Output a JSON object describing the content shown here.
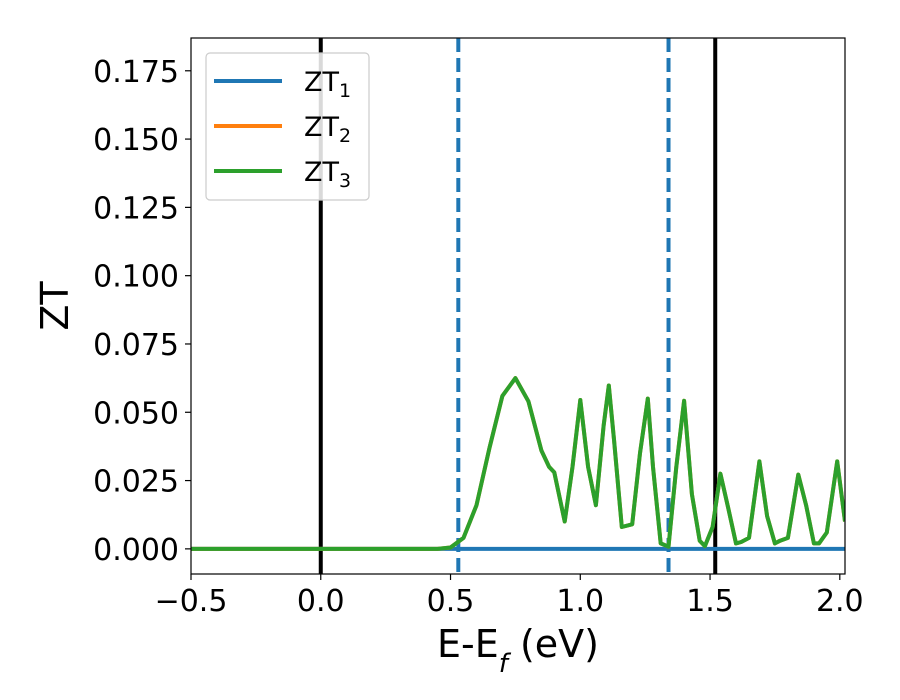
{
  "chart_data": {
    "type": "line",
    "title": "",
    "xlabel": "E-E_f (eV)",
    "ylabel": "ZT",
    "xlim": [
      -0.5,
      2.02
    ],
    "ylim": [
      -0.0092,
      0.187
    ],
    "xticks": [
      -0.5,
      0.0,
      0.5,
      1.0,
      1.5,
      2.0
    ],
    "xtick_labels": [
      "−0.5",
      "0.0",
      "0.5",
      "1.0",
      "1.5",
      "2.0"
    ],
    "yticks": [
      0.0,
      0.025,
      0.05,
      0.075,
      0.1,
      0.125,
      0.15,
      0.175
    ],
    "ytick_labels": [
      "0.000",
      "0.025",
      "0.050",
      "0.075",
      "0.100",
      "0.125",
      "0.150",
      "0.175"
    ],
    "grid": false,
    "legend_position": "top-left",
    "legend_entries": [
      {
        "name": "ZT",
        "sub": "1",
        "color": "#1f77b4"
      },
      {
        "name": "ZT",
        "sub": "2",
        "color": "#ff7f0e"
      },
      {
        "name": "ZT",
        "sub": "3",
        "color": "#2ca02c"
      }
    ],
    "vlines": [
      {
        "x": 0.0,
        "style": "solid",
        "color": "#000000"
      },
      {
        "x": 1.52,
        "style": "solid",
        "color": "#000000"
      },
      {
        "x": 0.53,
        "style": "dashed",
        "color": "#1f77b4"
      },
      {
        "x": 1.34,
        "style": "dashed",
        "color": "#1f77b4"
      }
    ],
    "series": [
      {
        "name": "ZT₁",
        "color": "#1f77b4",
        "x": [
          -0.5,
          2.02
        ],
        "y": [
          0.0,
          0.0
        ]
      },
      {
        "name": "ZT₂",
        "color": "#ff7f0e",
        "x": [
          -0.5,
          0.45,
          0.5,
          0.55,
          0.6,
          0.65,
          0.7,
          0.75,
          0.8,
          0.85,
          0.88,
          0.9,
          0.94,
          0.97,
          1.0,
          1.03,
          1.06,
          1.09,
          1.11,
          1.13,
          1.16,
          1.2,
          1.23,
          1.26,
          1.28,
          1.31,
          1.34,
          1.37,
          1.4,
          1.43,
          1.46,
          1.48,
          1.51,
          1.54,
          1.57,
          1.6,
          1.62,
          1.65,
          1.69,
          1.72,
          1.75,
          1.77,
          1.8,
          1.84,
          1.87,
          1.9,
          1.92,
          1.95,
          1.99,
          2.02
        ],
        "y": [
          0.0,
          0.0,
          0.0005,
          0.004,
          0.016,
          0.037,
          0.056,
          0.0625,
          0.054,
          0.036,
          0.03,
          0.028,
          0.01,
          0.03,
          0.0545,
          0.03,
          0.016,
          0.045,
          0.0598,
          0.04,
          0.008,
          0.009,
          0.035,
          0.055,
          0.03,
          0.002,
          0.0008,
          0.03,
          0.0542,
          0.02,
          0.003,
          0.001,
          0.008,
          0.0275,
          0.015,
          0.002,
          0.0025,
          0.004,
          0.032,
          0.012,
          0.002,
          0.003,
          0.004,
          0.0272,
          0.016,
          0.002,
          0.002,
          0.006,
          0.032,
          0.01
        ]
      },
      {
        "name": "ZT₃",
        "color": "#2ca02c",
        "x": [
          -0.5,
          0.45,
          0.5,
          0.55,
          0.6,
          0.65,
          0.7,
          0.75,
          0.8,
          0.85,
          0.88,
          0.9,
          0.94,
          0.97,
          1.0,
          1.03,
          1.06,
          1.09,
          1.11,
          1.13,
          1.16,
          1.2,
          1.23,
          1.26,
          1.28,
          1.31,
          1.34,
          1.37,
          1.4,
          1.43,
          1.46,
          1.48,
          1.51,
          1.54,
          1.57,
          1.6,
          1.62,
          1.65,
          1.69,
          1.72,
          1.75,
          1.77,
          1.8,
          1.84,
          1.87,
          1.9,
          1.92,
          1.95,
          1.99,
          2.02
        ],
        "y": [
          0.0,
          0.0,
          0.0005,
          0.004,
          0.016,
          0.037,
          0.056,
          0.0625,
          0.054,
          0.036,
          0.03,
          0.028,
          0.01,
          0.03,
          0.0545,
          0.03,
          0.016,
          0.045,
          0.0598,
          0.04,
          0.008,
          0.009,
          0.035,
          0.055,
          0.03,
          0.002,
          0.0008,
          0.03,
          0.0542,
          0.02,
          0.003,
          0.001,
          0.008,
          0.0275,
          0.015,
          0.002,
          0.0025,
          0.004,
          0.032,
          0.012,
          0.002,
          0.003,
          0.004,
          0.0272,
          0.016,
          0.002,
          0.002,
          0.006,
          0.032,
          0.01
        ]
      }
    ]
  }
}
